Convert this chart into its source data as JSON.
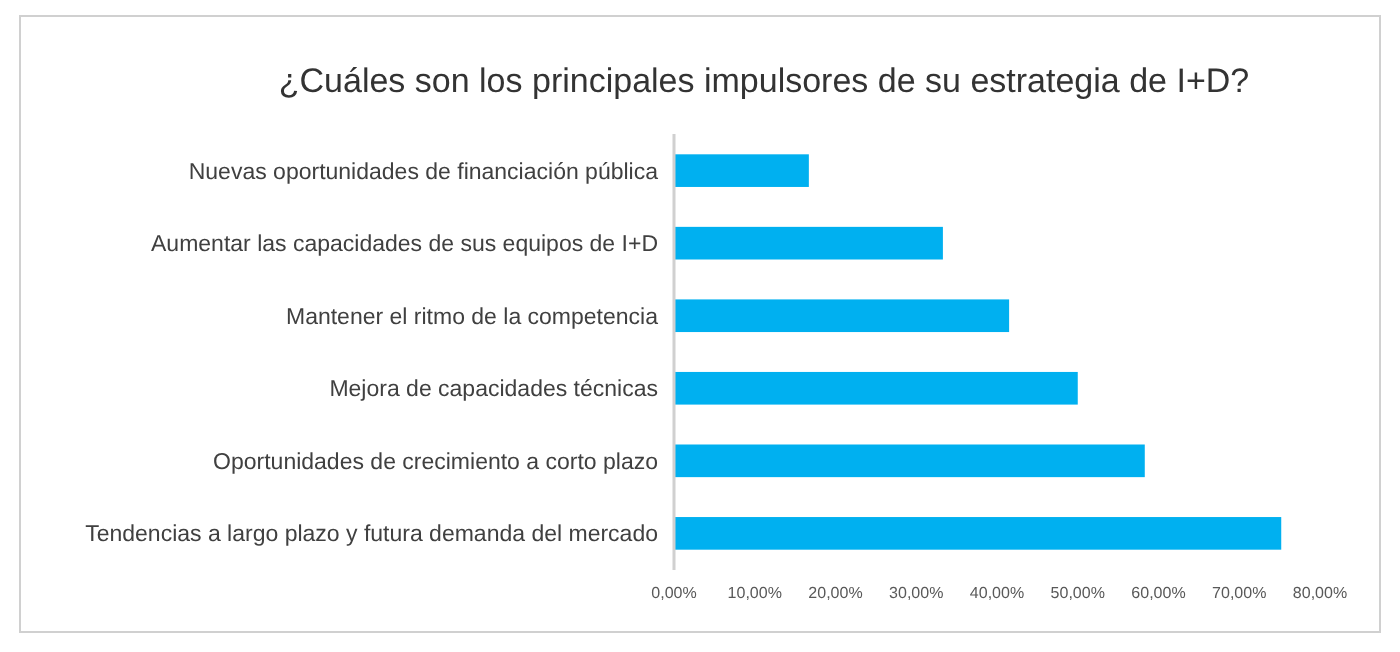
{
  "chart_data": {
    "type": "bar",
    "orientation": "horizontal",
    "title": "¿Cuáles son los principales impulsores de su estrategia de I+D?",
    "categories": [
      "Nuevas oportunidades de financiación pública",
      "Aumentar las capacidades de sus equipos de I+D",
      "Mantener el ritmo de la competencia",
      "Mejora de capacidades técnicas",
      "Oportunidades de crecimiento a corto plazo",
      "Tendencias a largo plazo y futura demanda del mercado"
    ],
    "values": [
      16.7,
      33.3,
      41.5,
      50,
      58.3,
      75.2
    ],
    "color": "#00b0f0",
    "xlim": [
      0,
      80
    ],
    "xticks": [
      {
        "value": 0,
        "label": "0,00%"
      },
      {
        "value": 10,
        "label": "10,00%"
      },
      {
        "value": 20,
        "label": "20,00%"
      },
      {
        "value": 30,
        "label": "30,00%"
      },
      {
        "value": 40,
        "label": "40,00%"
      },
      {
        "value": 50,
        "label": "50,00%"
      },
      {
        "value": 60,
        "label": "60,00%"
      },
      {
        "value": 70,
        "label": "70,00%"
      },
      {
        "value": 80,
        "label": "80,00%"
      }
    ],
    "grid": false
  }
}
